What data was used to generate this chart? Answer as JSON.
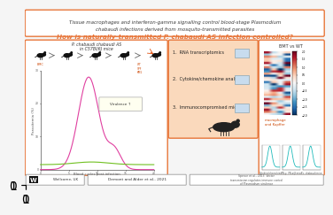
{
  "title_line1": "Tissue macrophages and interferon-gamma signalling control blood-stage Plasmodium",
  "title_line2": "chabaudi infections derived from mosquito-transmitted parasites",
  "subtitle": "How is naturally-transmitted P. chabaudi AS infection controlled?",
  "title_box_color": "#E8763A",
  "subtitle_color": "#E8763A",
  "bg_color": "#F5F5F5",
  "panel_border_color": "#E8763A",
  "panel_inner_color": "#FAD9BC",
  "left_panel_title1": "P. chabaudi chabaudi AS",
  "left_panel_title2": "in C57Bl/6J mice",
  "middle_items": [
    "1.  RNA transcriptomics",
    "2.  Cytokine/chemokine analysis",
    "3.  Immunocompromised mice"
  ],
  "footer_left": "Wellcome, UK",
  "footer_mid": "Demont and Alder et al., 2021",
  "footer_right_line1": "Spence et al., 2013. Vector",
  "footer_right_line2": "transmission regulates immune control",
  "footer_right_line3": "of Plasmodium virulence",
  "parasitemia_color_pink": "#E040A0",
  "parasitemia_color_green": "#70C020",
  "xaxis_label": "Blood cycles post-infection",
  "yaxis_label": "Parasitemia (%)",
  "right_panel_title": "BMT vs WT",
  "right_panel_label": "macrophage\nand Kupffer",
  "mini_labels": [
    "Cytokine/chemokine",
    "IFN-γ, IFN-α/β mice",
    "P.c. chabaudi mice"
  ]
}
